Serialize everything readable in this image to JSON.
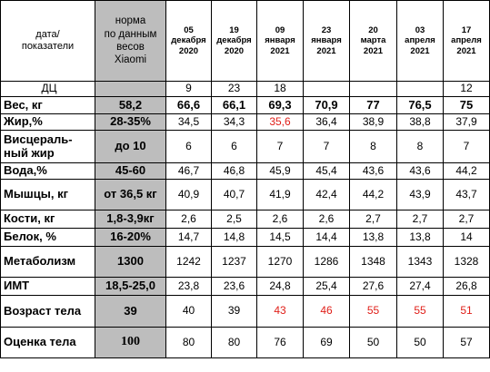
{
  "header": {
    "corner": "дата/\nпоказатели",
    "norm": "норма\nпо данным\nвесов\nXiaomi",
    "dates": [
      "05\nдекабря\n2020",
      "19\nдекабря\n2020",
      "09\nянваря\n2021",
      "23\nянваря\n2021",
      "20\nмарта\n2021",
      "03\nапреля\n2021",
      "17\nапреля\n2021"
    ]
  },
  "rows": [
    {
      "label": "ДЦ",
      "norm": "",
      "values": [
        "9",
        "23",
        "18",
        "",
        "",
        "",
        "12"
      ]
    },
    {
      "label": "Вес, кг",
      "norm": "58,2",
      "values": [
        "66,6",
        "66,1",
        "69,3",
        "70,9",
        "77",
        "76,5",
        "75"
      ]
    },
    {
      "label": "Жир,%",
      "norm": "28-35%",
      "values": [
        "34,5",
        "34,3",
        "35,6",
        "36,4",
        "38,9",
        "38,8",
        "37,9"
      ]
    },
    {
      "label": "Висцераль-\nный жир",
      "norm": "до 10",
      "values": [
        "6",
        "6",
        "7",
        "7",
        "8",
        "8",
        "7"
      ]
    },
    {
      "label": "Вода,%",
      "norm": "45-60",
      "values": [
        "46,7",
        "46,8",
        "45,9",
        "45,4",
        "43,6",
        "43,6",
        "44,2"
      ]
    },
    {
      "label": "Мышцы, кг",
      "norm": "от 36,5 кг",
      "values": [
        "40,9",
        "40,7",
        "41,9",
        "42,4",
        "44,2",
        "43,9",
        "43,7"
      ]
    },
    {
      "label": "Кости, кг",
      "norm": "1,8-3,9кг",
      "values": [
        "2,6",
        "2,5",
        "2,6",
        "2,6",
        "2,7",
        "2,7",
        "2,7"
      ]
    },
    {
      "label": "Белок, %",
      "norm": "16-20%",
      "values": [
        "14,7",
        "14,8",
        "14,5",
        "14,4",
        "13,8",
        "13,8",
        "14"
      ]
    },
    {
      "label": "Метаболизм",
      "norm": "1300",
      "values": [
        "1242",
        "1237",
        "1270",
        "1286",
        "1348",
        "1343",
        "1328"
      ]
    },
    {
      "label": "ИМТ",
      "norm": "18,5-25,0",
      "values": [
        "23,8",
        "23,6",
        "24,8",
        "25,4",
        "27,6",
        "27,4",
        "26,8"
      ]
    },
    {
      "label": "Возраст тела",
      "norm": "39",
      "values": [
        "40",
        "39",
        "43",
        "46",
        "55",
        "55",
        "51"
      ]
    },
    {
      "label": "Оценка тела",
      "norm": "100",
      "values": [
        "80",
        "80",
        "76",
        "69",
        "50",
        "50",
        "57"
      ]
    }
  ],
  "colors": {
    "norm_bg": "#bdbdbd",
    "highlight": "#e0201a"
  }
}
